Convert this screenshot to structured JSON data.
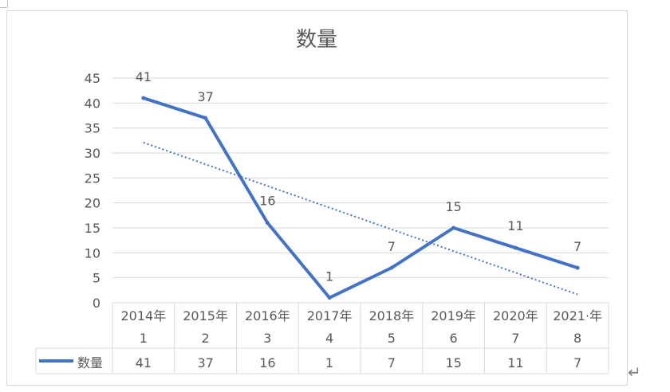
{
  "chart_data": {
    "type": "line",
    "title": "数量",
    "categories": [
      {
        "year": "2014年",
        "index": "1"
      },
      {
        "year": "2015年",
        "index": "2"
      },
      {
        "year": "2016年",
        "index": "3"
      },
      {
        "year": "2017年",
        "index": "4"
      },
      {
        "year": "2018年",
        "index": "5"
      },
      {
        "year": "2019年",
        "index": "6"
      },
      {
        "year": "2020年",
        "index": "7"
      },
      {
        "year": "2021·年",
        "index": "8"
      }
    ],
    "series": [
      {
        "name": "数量",
        "values": [
          41,
          37,
          16,
          1,
          7,
          15,
          11,
          7
        ],
        "color": "#4472c4"
      }
    ],
    "trendline": {
      "type": "linear",
      "style": "dotted",
      "color": "#4472c4"
    },
    "ylim": [
      0,
      45
    ],
    "yticks": [
      0,
      5,
      10,
      15,
      20,
      25,
      30,
      35,
      40,
      45
    ],
    "grid": true,
    "data_labels": true,
    "data_table": true,
    "legend": "data-table"
  },
  "decor": {
    "return_glyph": "↵"
  }
}
